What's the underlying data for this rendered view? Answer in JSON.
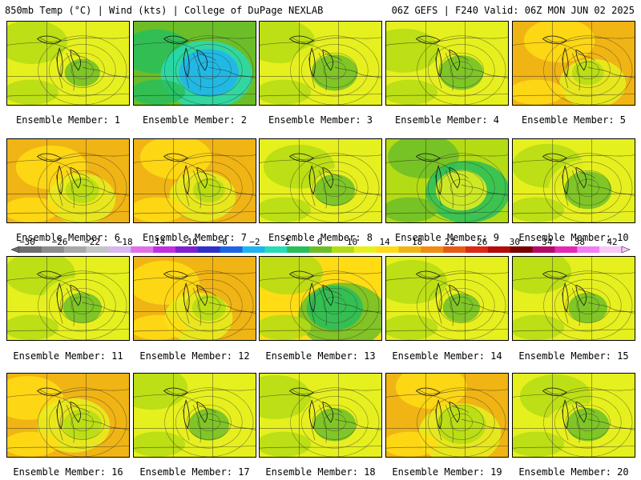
{
  "header": {
    "left": "850mb Temp (°C) | Wind (kts) | College of DuPage NEXLAB",
    "right": "06Z GEFS | F240 Valid: 06Z MON JUN 02 2025"
  },
  "colorbar": {
    "labels": [
      "-30",
      "-26",
      "-22",
      "-18",
      "-14",
      "-10",
      "-6",
      "-2",
      "2",
      "6",
      "10",
      "14",
      "18",
      "22",
      "26",
      "30",
      "34",
      "38",
      "42"
    ],
    "colors": [
      "#6e6e6e",
      "#8c8c8c",
      "#a8a8a8",
      "#c4c4c4",
      "#d8b8ec",
      "#e070e8",
      "#c030e0",
      "#8020d0",
      "#3030c8",
      "#1e64e6",
      "#1eb4f0",
      "#28dcb4",
      "#28be5a",
      "#6cbe28",
      "#b4dc14",
      "#e6f01e",
      "#ffdc14",
      "#f0b414",
      "#f08c14",
      "#e65a14",
      "#dc2814",
      "#b40a0a",
      "#780000",
      "#b40a64",
      "#e628b4",
      "#f080f0",
      "#f8c8f8"
    ]
  },
  "panels": [
    {
      "caption": "Ensemble Member: 1",
      "theme": "yellow-green",
      "cold": 0.2
    },
    {
      "caption": "Ensemble Member: 2",
      "theme": "teal-green",
      "cold": 0.9
    },
    {
      "caption": "Ensemble Member: 3",
      "theme": "yellow-green",
      "cold": 0.5
    },
    {
      "caption": "Ensemble Member: 4",
      "theme": "yellow-green",
      "cold": 0.45
    },
    {
      "caption": "Ensemble Member: 5",
      "theme": "orange-yellow",
      "cold": 0.1
    },
    {
      "caption": "Ensemble Member: 6",
      "theme": "orange-yellow",
      "cold": 0.15
    },
    {
      "caption": "Ensemble Member: 7",
      "theme": "orange-yellow",
      "cold": 0.1
    },
    {
      "caption": "Ensemble Member: 8",
      "theme": "yellow-green",
      "cold": 0.35
    },
    {
      "caption": "Ensemble Member: 9",
      "theme": "green",
      "cold": 0.65
    },
    {
      "caption": "Ensemble Member: 10",
      "theme": "yellow-green",
      "cold": 0.55
    },
    {
      "caption": "Ensemble Member: 11",
      "theme": "yellow-green",
      "cold": 0.3
    },
    {
      "caption": "Ensemble Member: 12",
      "theme": "orange-yellow",
      "cold": 0.15
    },
    {
      "caption": "Ensemble Member: 13",
      "theme": "green-core",
      "cold": 0.8
    },
    {
      "caption": "Ensemble Member: 14",
      "theme": "yellow-green",
      "cold": 0.25
    },
    {
      "caption": "Ensemble Member: 15",
      "theme": "yellow-green",
      "cold": 0.3
    },
    {
      "caption": "Ensemble Member: 16",
      "theme": "orange-yellow",
      "cold": 0.3
    },
    {
      "caption": "Ensemble Member: 17",
      "theme": "yellow-green",
      "cold": 0.35
    },
    {
      "caption": "Ensemble Member: 18",
      "theme": "yellow-green",
      "cold": 0.4
    },
    {
      "caption": "Ensemble Member: 19",
      "theme": "orange-yellow",
      "cold": 0.6
    },
    {
      "caption": "Ensemble Member: 20",
      "theme": "yellow-green",
      "cold": 0.4
    }
  ]
}
